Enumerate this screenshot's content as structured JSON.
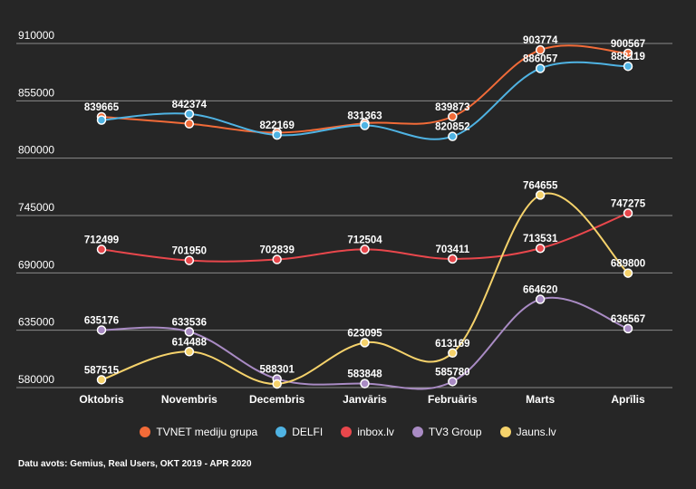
{
  "chart_data": {
    "type": "line",
    "title": "",
    "xlabel": "",
    "ylabel": "",
    "ylim": [
      580000,
      910000
    ],
    "yticks": [
      910000,
      855000,
      800000,
      745000,
      690000,
      635000,
      580000
    ],
    "ytick_labels": [
      "910000",
      "855000",
      "800000",
      "745000",
      "690000",
      "635000",
      "580000"
    ],
    "categories": [
      "Oktobris",
      "Novembris",
      "Decembris",
      "Janvāris",
      "Februāris",
      "Marts",
      "Aprīlis"
    ],
    "series": [
      {
        "name": "TVNET mediju grupa",
        "color": "#f26b38",
        "values": [
          839665,
          833000,
          824500,
          833500,
          839873,
          903774,
          900567
        ],
        "labels": [
          "839665",
          "",
          "",
          "",
          "839873",
          "903774",
          "900567"
        ]
      },
      {
        "name": "DELFI",
        "color": "#4fb3e3",
        "values": [
          836500,
          842374,
          822169,
          831363,
          820852,
          886057,
          888119
        ],
        "labels": [
          "",
          "842374",
          "822169",
          "831363",
          "820852",
          "886057",
          "888119"
        ]
      },
      {
        "name": "inbox.lv",
        "color": "#e8474c",
        "values": [
          712499,
          701950,
          702839,
          712504,
          703411,
          713531,
          747275
        ],
        "labels": [
          "712499",
          "701950",
          "702839",
          "712504",
          "703411",
          "713531",
          "747275"
        ]
      },
      {
        "name": "TV3 Group",
        "color": "#a98bc4",
        "values": [
          635176,
          633536,
          588301,
          583848,
          585780,
          664620,
          636567
        ],
        "labels": [
          "635176",
          "633536",
          "588301",
          "583848",
          "585780",
          "664620",
          "636567"
        ]
      },
      {
        "name": "Jauns.lv",
        "color": "#f5d26b",
        "values": [
          587515,
          614488,
          583500,
          623095,
          613169,
          764655,
          689800
        ],
        "labels": [
          "587515",
          "614488",
          "",
          "623095",
          "613169",
          "764655",
          "689800"
        ]
      }
    ],
    "legend_position": "bottom-center",
    "grid": true
  },
  "source_text": "Datu avots: Gemius, Real Users, OKT 2019 - APR 2020"
}
